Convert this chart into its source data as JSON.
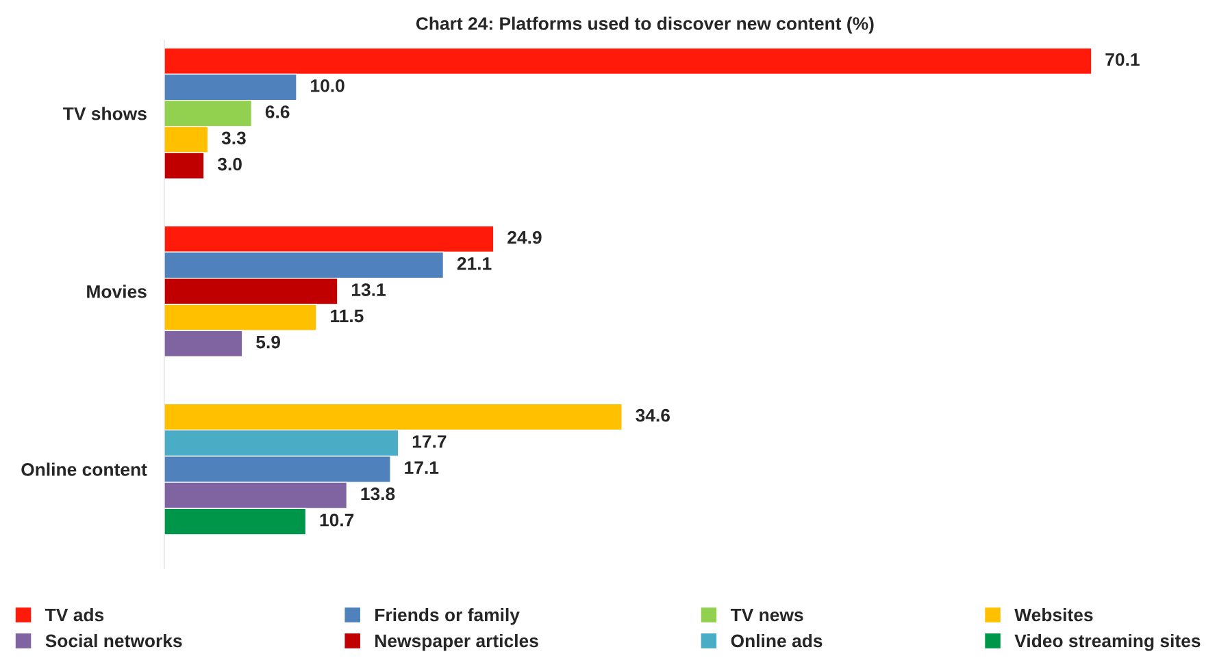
{
  "chart_data": {
    "type": "bar",
    "orientation": "horizontal",
    "title": "Chart 24: Platforms used to discover new content (%)",
    "categories": [
      "TV shows",
      "Movies",
      "Online content"
    ],
    "series": [
      {
        "name": "TV ads",
        "color": "#ff1a0a",
        "values": [
          70.1,
          24.9,
          null
        ],
        "value_labels": [
          "70.1",
          "24.9",
          null
        ]
      },
      {
        "name": "Friends or family",
        "color": "#4f81bd",
        "values": [
          10.0,
          21.1,
          17.1
        ],
        "value_labels": [
          "10.0",
          "21.1",
          "17.1"
        ]
      },
      {
        "name": "TV news",
        "color": "#92d050",
        "values": [
          6.6,
          null,
          null
        ],
        "value_labels": [
          "6.6",
          null,
          null
        ]
      },
      {
        "name": "Websites",
        "color": "#ffc000",
        "values": [
          3.3,
          11.5,
          34.6
        ],
        "value_labels": [
          "3.3",
          "11.5",
          "34.6"
        ]
      },
      {
        "name": "Social networks",
        "color": "#8064a2",
        "values": [
          null,
          5.9,
          13.8
        ],
        "value_labels": [
          null,
          "5.9",
          "13.8"
        ]
      },
      {
        "name": "Newspaper articles",
        "color": "#c00000",
        "values": [
          3.0,
          13.1,
          null
        ],
        "value_labels": [
          "3.0",
          "13.1",
          null
        ]
      },
      {
        "name": "Online ads",
        "color": "#4bacc6",
        "values": [
          null,
          null,
          17.7
        ],
        "value_labels": [
          null,
          null,
          "17.7"
        ]
      },
      {
        "name": "Video streaming sites",
        "color": "#00964a",
        "values": [
          null,
          null,
          10.7
        ],
        "value_labels": [
          null,
          null,
          "10.7"
        ]
      }
    ],
    "legend": "bottom",
    "grid": false
  }
}
